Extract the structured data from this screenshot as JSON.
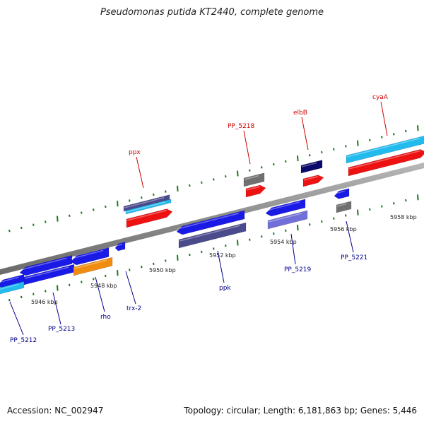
{
  "title": "Pseudomonas putida KT2440, complete genome",
  "footer": {
    "accession": "Accession: NC_002947",
    "topology": "Topology: circular; Length: 6,181,863 bp; Genes: 5,446"
  },
  "colors": {
    "red_label": "#cc0000",
    "blue_label": "#00008b",
    "tick": "#1a7a1a",
    "backbone": "#8c8c8c",
    "feature_blue": "#1a1ae6",
    "feature_red": "#ee1111",
    "feature_cyan": "#22bbee",
    "feature_navy": "#0a0a6a",
    "feature_gray": "#707070",
    "feature_orange": "#f08c10",
    "feature_purple": "#4a4a8c",
    "feature_lavender": "#7070d8"
  },
  "kbp_labels": [
    "5946 kbp",
    "5948 kbp",
    "5950 kbp",
    "5952 kbp",
    "5954 kbp",
    "5956 kbp",
    "5958 kbp"
  ],
  "top_genes": [
    "ppx",
    "PP_5218",
    "elbB",
    "cyaA"
  ],
  "bottom_genes": [
    "PP_5212",
    "PP_5213",
    "rho",
    "trx-2",
    "ppk",
    "PP_5219",
    "PP_5221"
  ]
}
